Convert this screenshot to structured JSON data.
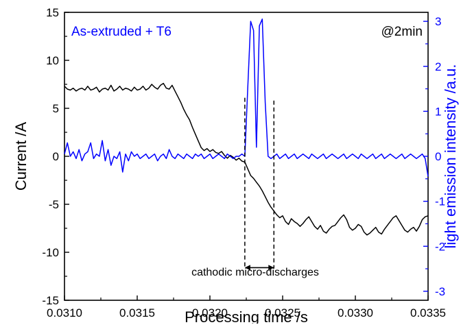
{
  "chart_data": {
    "type": "line",
    "xlabel": "Processing time /s",
    "ylabel_left": "Current  /A",
    "ylabel_right": "light emission intensity /a.u.",
    "x_ticks": [
      "0.0310",
      "0.0315",
      "0.0320",
      "0.0325",
      "0.0330",
      "0.0335"
    ],
    "x_tick_values": [
      0.031,
      0.0315,
      0.032,
      0.0325,
      0.033,
      0.0335
    ],
    "y_left_ticks": [
      "15",
      "10",
      "5",
      "0",
      "-5",
      "-10",
      "-15"
    ],
    "y_left_tick_values": [
      15,
      10,
      5,
      0,
      -5,
      -10,
      -15
    ],
    "y_right_ticks": [
      "3",
      "2",
      "1",
      "0",
      "-1",
      "-2",
      "-3"
    ],
    "y_right_tick_values": [
      3,
      2,
      1,
      0,
      -1,
      -2,
      -3
    ],
    "xlim": [
      0.031,
      0.0335
    ],
    "ylim_left": [
      -15,
      15
    ],
    "ylim_right": [
      -3.2,
      3.2
    ],
    "annotations": {
      "sample": "As-extruded + T6",
      "time": "@2min",
      "discharge": "cathodic micro-discharges"
    },
    "discharge_window": [
      0.03224,
      0.03244
    ],
    "colors": {
      "current": "#000000",
      "light": "#0000ff",
      "axis": "#000000",
      "right_axis": "#0000ff"
    },
    "series": [
      {
        "axis": "left",
        "x": [
          0.031,
          0.03102,
          0.03104,
          0.03106,
          0.03108,
          0.0311,
          0.03112,
          0.03114,
          0.03116,
          0.03118,
          0.0312,
          0.03122,
          0.03124,
          0.03126,
          0.03128,
          0.0313,
          0.03132,
          0.03134,
          0.03136,
          0.03138,
          0.0314,
          0.03142,
          0.03144,
          0.03146,
          0.03148,
          0.0315,
          0.03152,
          0.03154,
          0.03156,
          0.03158,
          0.0316,
          0.03162,
          0.03164,
          0.03166,
          0.03168,
          0.0317,
          0.03172,
          0.03174,
          0.03176,
          0.03178,
          0.0318,
          0.03182,
          0.03184,
          0.03186,
          0.03188,
          0.0319,
          0.03192,
          0.03194,
          0.03196,
          0.03198,
          0.032,
          0.03202,
          0.03204,
          0.03206,
          0.03208,
          0.0321,
          0.03212,
          0.03214,
          0.03216,
          0.03218,
          0.0322,
          0.03222,
          0.03224,
          0.03226,
          0.03228,
          0.0323,
          0.03232,
          0.03234,
          0.03236,
          0.03238,
          0.0324,
          0.03242,
          0.03244,
          0.03246,
          0.03248,
          0.0325,
          0.03252,
          0.03254,
          0.03256,
          0.03258,
          0.0326,
          0.03262,
          0.03264,
          0.03266,
          0.03268,
          0.0327,
          0.03272,
          0.03274,
          0.03276,
          0.03278,
          0.0328,
          0.03282,
          0.03284,
          0.03286,
          0.03288,
          0.0329,
          0.03292,
          0.03294,
          0.03296,
          0.03298,
          0.033,
          0.03302,
          0.03304,
          0.03306,
          0.03308,
          0.0331,
          0.03312,
          0.03314,
          0.03316,
          0.03318,
          0.0332,
          0.03322,
          0.03324,
          0.03326,
          0.03328,
          0.0333,
          0.03332,
          0.03334,
          0.03336,
          0.03338,
          0.0334,
          0.03342,
          0.03344,
          0.03346,
          0.03348,
          0.0335
        ],
        "y": [
          7.3,
          7.0,
          6.9,
          7.1,
          6.8,
          7.0,
          7.1,
          6.9,
          7.3,
          6.9,
          7.0,
          7.2,
          6.7,
          7.0,
          7.1,
          6.9,
          7.4,
          6.8,
          7.0,
          7.3,
          6.9,
          7.1,
          7.0,
          6.8,
          7.2,
          6.9,
          7.0,
          7.3,
          6.9,
          7.1,
          7.5,
          7.2,
          7.0,
          7.4,
          7.6,
          7.1,
          7.0,
          7.4,
          6.8,
          6.2,
          5.6,
          4.9,
          4.3,
          3.8,
          3.0,
          2.3,
          1.6,
          0.9,
          0.6,
          0.8,
          0.5,
          0.7,
          0.4,
          0.3,
          0.5,
          0.1,
          -0.2,
          0.1,
          -0.1,
          -0.4,
          -0.2,
          -0.5,
          -0.6,
          -1.3,
          -2.0,
          -2.3,
          -2.7,
          -3.1,
          -3.6,
          -4.2,
          -4.8,
          -5.3,
          -5.7,
          -6.1,
          -6.4,
          -6.2,
          -6.8,
          -7.1,
          -6.5,
          -6.8,
          -7.0,
          -7.3,
          -7.0,
          -6.6,
          -6.3,
          -6.8,
          -7.3,
          -7.6,
          -7.2,
          -7.8,
          -8.0,
          -7.6,
          -7.3,
          -7.2,
          -6.8,
          -6.4,
          -6.1,
          -6.6,
          -7.4,
          -7.7,
          -7.5,
          -7.1,
          -7.3,
          -7.9,
          -8.2,
          -8.0,
          -7.7,
          -7.4,
          -7.9,
          -8.1,
          -7.6,
          -7.2,
          -6.8,
          -6.4,
          -6.2,
          -6.7,
          -7.2,
          -7.7,
          -7.9,
          -7.6,
          -7.4,
          -7.8,
          -7.3,
          -6.6,
          -6.3,
          -6.2
        ]
      },
      {
        "axis": "right",
        "x": [
          0.031,
          0.03102,
          0.03104,
          0.03106,
          0.03108,
          0.0311,
          0.03112,
          0.03114,
          0.03116,
          0.03118,
          0.0312,
          0.03122,
          0.03124,
          0.03126,
          0.03128,
          0.0313,
          0.03132,
          0.03134,
          0.03136,
          0.03138,
          0.0314,
          0.03142,
          0.03144,
          0.03146,
          0.03148,
          0.0315,
          0.03152,
          0.03154,
          0.03156,
          0.03158,
          0.0316,
          0.03162,
          0.03164,
          0.03166,
          0.03168,
          0.0317,
          0.03172,
          0.03174,
          0.03176,
          0.03178,
          0.0318,
          0.03182,
          0.03184,
          0.03186,
          0.03188,
          0.0319,
          0.03192,
          0.03194,
          0.03196,
          0.03198,
          0.032,
          0.03202,
          0.03204,
          0.03206,
          0.03208,
          0.0321,
          0.03212,
          0.03214,
          0.03216,
          0.03218,
          0.0322,
          0.03222,
          0.03224,
          0.03226,
          0.03228,
          0.0323,
          0.03232,
          0.03234,
          0.03236,
          0.03238,
          0.0324,
          0.03242,
          0.03244,
          0.03246,
          0.03248,
          0.0325,
          0.03252,
          0.03254,
          0.03256,
          0.03258,
          0.0326,
          0.03262,
          0.03264,
          0.03266,
          0.03268,
          0.0327,
          0.03272,
          0.03274,
          0.03276,
          0.03278,
          0.0328,
          0.03282,
          0.03284,
          0.03286,
          0.03288,
          0.0329,
          0.03292,
          0.03294,
          0.03296,
          0.03298,
          0.033,
          0.03302,
          0.03304,
          0.03306,
          0.03308,
          0.0331,
          0.03312,
          0.03314,
          0.03316,
          0.03318,
          0.0332,
          0.03322,
          0.03324,
          0.03326,
          0.03328,
          0.0333,
          0.03332,
          0.03334,
          0.03336,
          0.03338,
          0.0334,
          0.03342,
          0.03344,
          0.03346,
          0.03348,
          0.0335
        ],
        "y": [
          0.05,
          0.3,
          0.0,
          0.1,
          -0.05,
          0.15,
          -0.1,
          0.05,
          0.1,
          0.3,
          -0.05,
          0.05,
          0.0,
          0.35,
          -0.1,
          0.15,
          -0.2,
          0.0,
          -0.05,
          0.1,
          -0.35,
          0.05,
          -0.1,
          0.1,
          0.0,
          0.05,
          -0.05,
          0.0,
          0.05,
          -0.05,
          0.0,
          0.05,
          -0.1,
          0.0,
          0.05,
          -0.05,
          0.15,
          0.0,
          -0.05,
          0.05,
          0.0,
          -0.05,
          0.05,
          0.0,
          -0.05,
          0.05,
          0.0,
          0.05,
          -0.05,
          0.0,
          0.05,
          -0.05,
          0.0,
          0.05,
          0.0,
          -0.05,
          0.05,
          0.0,
          -0.05,
          0.0,
          0.0,
          0.05,
          0.0,
          1.5,
          3.0,
          2.8,
          0.2,
          2.9,
          3.05,
          1.2,
          0.0,
          -0.05,
          0.0,
          0.05,
          -0.05,
          0.0,
          0.05,
          -0.05,
          0.0,
          0.05,
          -0.05,
          0.0,
          0.05,
          0.0,
          -0.05,
          0.05,
          0.0,
          -0.05,
          0.0,
          0.05,
          -0.05,
          0.0,
          0.05,
          0.0,
          -0.05,
          0.0,
          0.05,
          -0.05,
          0.0,
          0.05,
          0.0,
          -0.05,
          0.05,
          0.0,
          -0.05,
          0.0,
          0.05,
          -0.05,
          0.0,
          0.05,
          -0.05,
          0.0,
          0.05,
          0.0,
          -0.05,
          0.0,
          0.05,
          -0.05,
          0.0,
          0.05,
          0.0,
          -0.05,
          0.0,
          0.05,
          -0.05,
          -0.45
        ]
      }
    ]
  }
}
